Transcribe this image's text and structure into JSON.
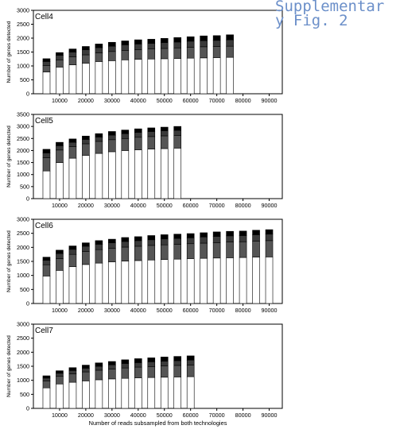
{
  "caption": "Supplementary Fig. 2",
  "chart_data": {
    "type": "bar",
    "stacked": true,
    "shared_xlabel": "Number of reads subsampled from both technologies",
    "stack_colors": [
      "#ffffff",
      "#555555",
      "#3a3a3a",
      "#000000"
    ],
    "panels": [
      {
        "title": "Cell4",
        "ylabel": "Number of genes detected",
        "ylim": [
          0,
          3000
        ],
        "yticks": [
          0,
          500,
          1000,
          1500,
          2000,
          2500,
          3000
        ],
        "xlim": [
          0,
          95000
        ],
        "xticks": [
          10000,
          20000,
          30000,
          40000,
          50000,
          60000,
          70000,
          80000,
          90000
        ],
        "x": [
          5000,
          10000,
          15000,
          20000,
          25000,
          30000,
          35000,
          40000,
          45000,
          50000,
          55000,
          60000,
          65000,
          70000,
          75000
        ],
        "segments": [
          [
            780,
            960,
            1040,
            1100,
            1160,
            1190,
            1220,
            1240,
            1250,
            1260,
            1270,
            1280,
            1290,
            1300,
            1310
          ],
          [
            230,
            260,
            290,
            300,
            310,
            330,
            340,
            350,
            360,
            370,
            380,
            390,
            400,
            400,
            400
          ],
          [
            150,
            160,
            170,
            180,
            190,
            190,
            200,
            200,
            200,
            210,
            210,
            220,
            220,
            220,
            230
          ],
          [
            100,
            100,
            110,
            120,
            130,
            140,
            140,
            150,
            150,
            150,
            160,
            160,
            170,
            170,
            180
          ]
        ]
      },
      {
        "title": "Cell5",
        "ylabel": "Number of genes detected",
        "ylim": [
          0,
          3500
        ],
        "yticks": [
          0,
          500,
          1000,
          1500,
          2000,
          2500,
          3000,
          3500
        ],
        "xlim": [
          0,
          95000
        ],
        "xticks": [
          10000,
          20000,
          30000,
          40000,
          50000,
          60000,
          70000,
          80000,
          90000
        ],
        "x": [
          5000,
          10000,
          15000,
          20000,
          25000,
          30000,
          35000,
          40000,
          45000,
          50000,
          55000
        ],
        "segments": [
          [
            1150,
            1500,
            1680,
            1800,
            1880,
            1950,
            2000,
            2030,
            2060,
            2080,
            2100
          ],
          [
            550,
            520,
            480,
            480,
            500,
            500,
            500,
            520,
            520,
            530,
            530
          ],
          [
            200,
            180,
            180,
            180,
            180,
            190,
            200,
            200,
            210,
            210,
            210
          ],
          [
            150,
            140,
            140,
            140,
            140,
            150,
            150,
            150,
            150,
            150,
            160
          ]
        ]
      },
      {
        "title": "Cell6",
        "ylabel": "Number of genes detected",
        "ylim": [
          0,
          3000
        ],
        "yticks": [
          0,
          500,
          1000,
          1500,
          2000,
          2500,
          3000
        ],
        "xlim": [
          0,
          95000
        ],
        "xticks": [
          10000,
          20000,
          30000,
          40000,
          50000,
          60000,
          70000,
          80000,
          90000
        ],
        "x": [
          5000,
          10000,
          15000,
          20000,
          25000,
          30000,
          35000,
          40000,
          45000,
          50000,
          55000,
          60000,
          65000,
          70000,
          75000,
          80000,
          85000,
          90000
        ],
        "segments": [
          [
            980,
            1180,
            1310,
            1390,
            1440,
            1480,
            1510,
            1530,
            1550,
            1570,
            1580,
            1600,
            1610,
            1620,
            1630,
            1640,
            1650,
            1660
          ],
          [
            400,
            420,
            440,
            460,
            480,
            490,
            500,
            510,
            520,
            520,
            530,
            530,
            540,
            550,
            560,
            560,
            570,
            580
          ],
          [
            160,
            180,
            180,
            190,
            190,
            190,
            200,
            200,
            200,
            210,
            210,
            210,
            220,
            220,
            220,
            220,
            230,
            230
          ],
          [
            110,
            120,
            120,
            120,
            130,
            130,
            140,
            140,
            150,
            150,
            150,
            150,
            150,
            160,
            160,
            160,
            160,
            160
          ]
        ]
      },
      {
        "title": "Cell7",
        "ylabel": "Number of genes detected",
        "ylim": [
          0,
          3000
        ],
        "yticks": [
          0,
          500,
          1000,
          1500,
          2000,
          2500,
          3000
        ],
        "xlim": [
          0,
          95000
        ],
        "xticks": [
          10000,
          20000,
          30000,
          40000,
          50000,
          60000,
          70000,
          80000,
          90000
        ],
        "xlabel": "Number of reads subsampled from both technologies",
        "x": [
          5000,
          10000,
          15000,
          20000,
          25000,
          30000,
          35000,
          40000,
          45000,
          50000,
          55000,
          60000
        ],
        "segments": [
          [
            730,
            870,
            930,
            980,
            1020,
            1050,
            1070,
            1090,
            1100,
            1110,
            1120,
            1130
          ],
          [
            250,
            270,
            300,
            320,
            340,
            350,
            370,
            380,
            390,
            400,
            410,
            410
          ],
          [
            100,
            110,
            120,
            130,
            140,
            150,
            160,
            160,
            170,
            170,
            170,
            180
          ],
          [
            80,
            90,
            100,
            110,
            120,
            120,
            130,
            140,
            140,
            150,
            150,
            150
          ]
        ]
      }
    ]
  }
}
